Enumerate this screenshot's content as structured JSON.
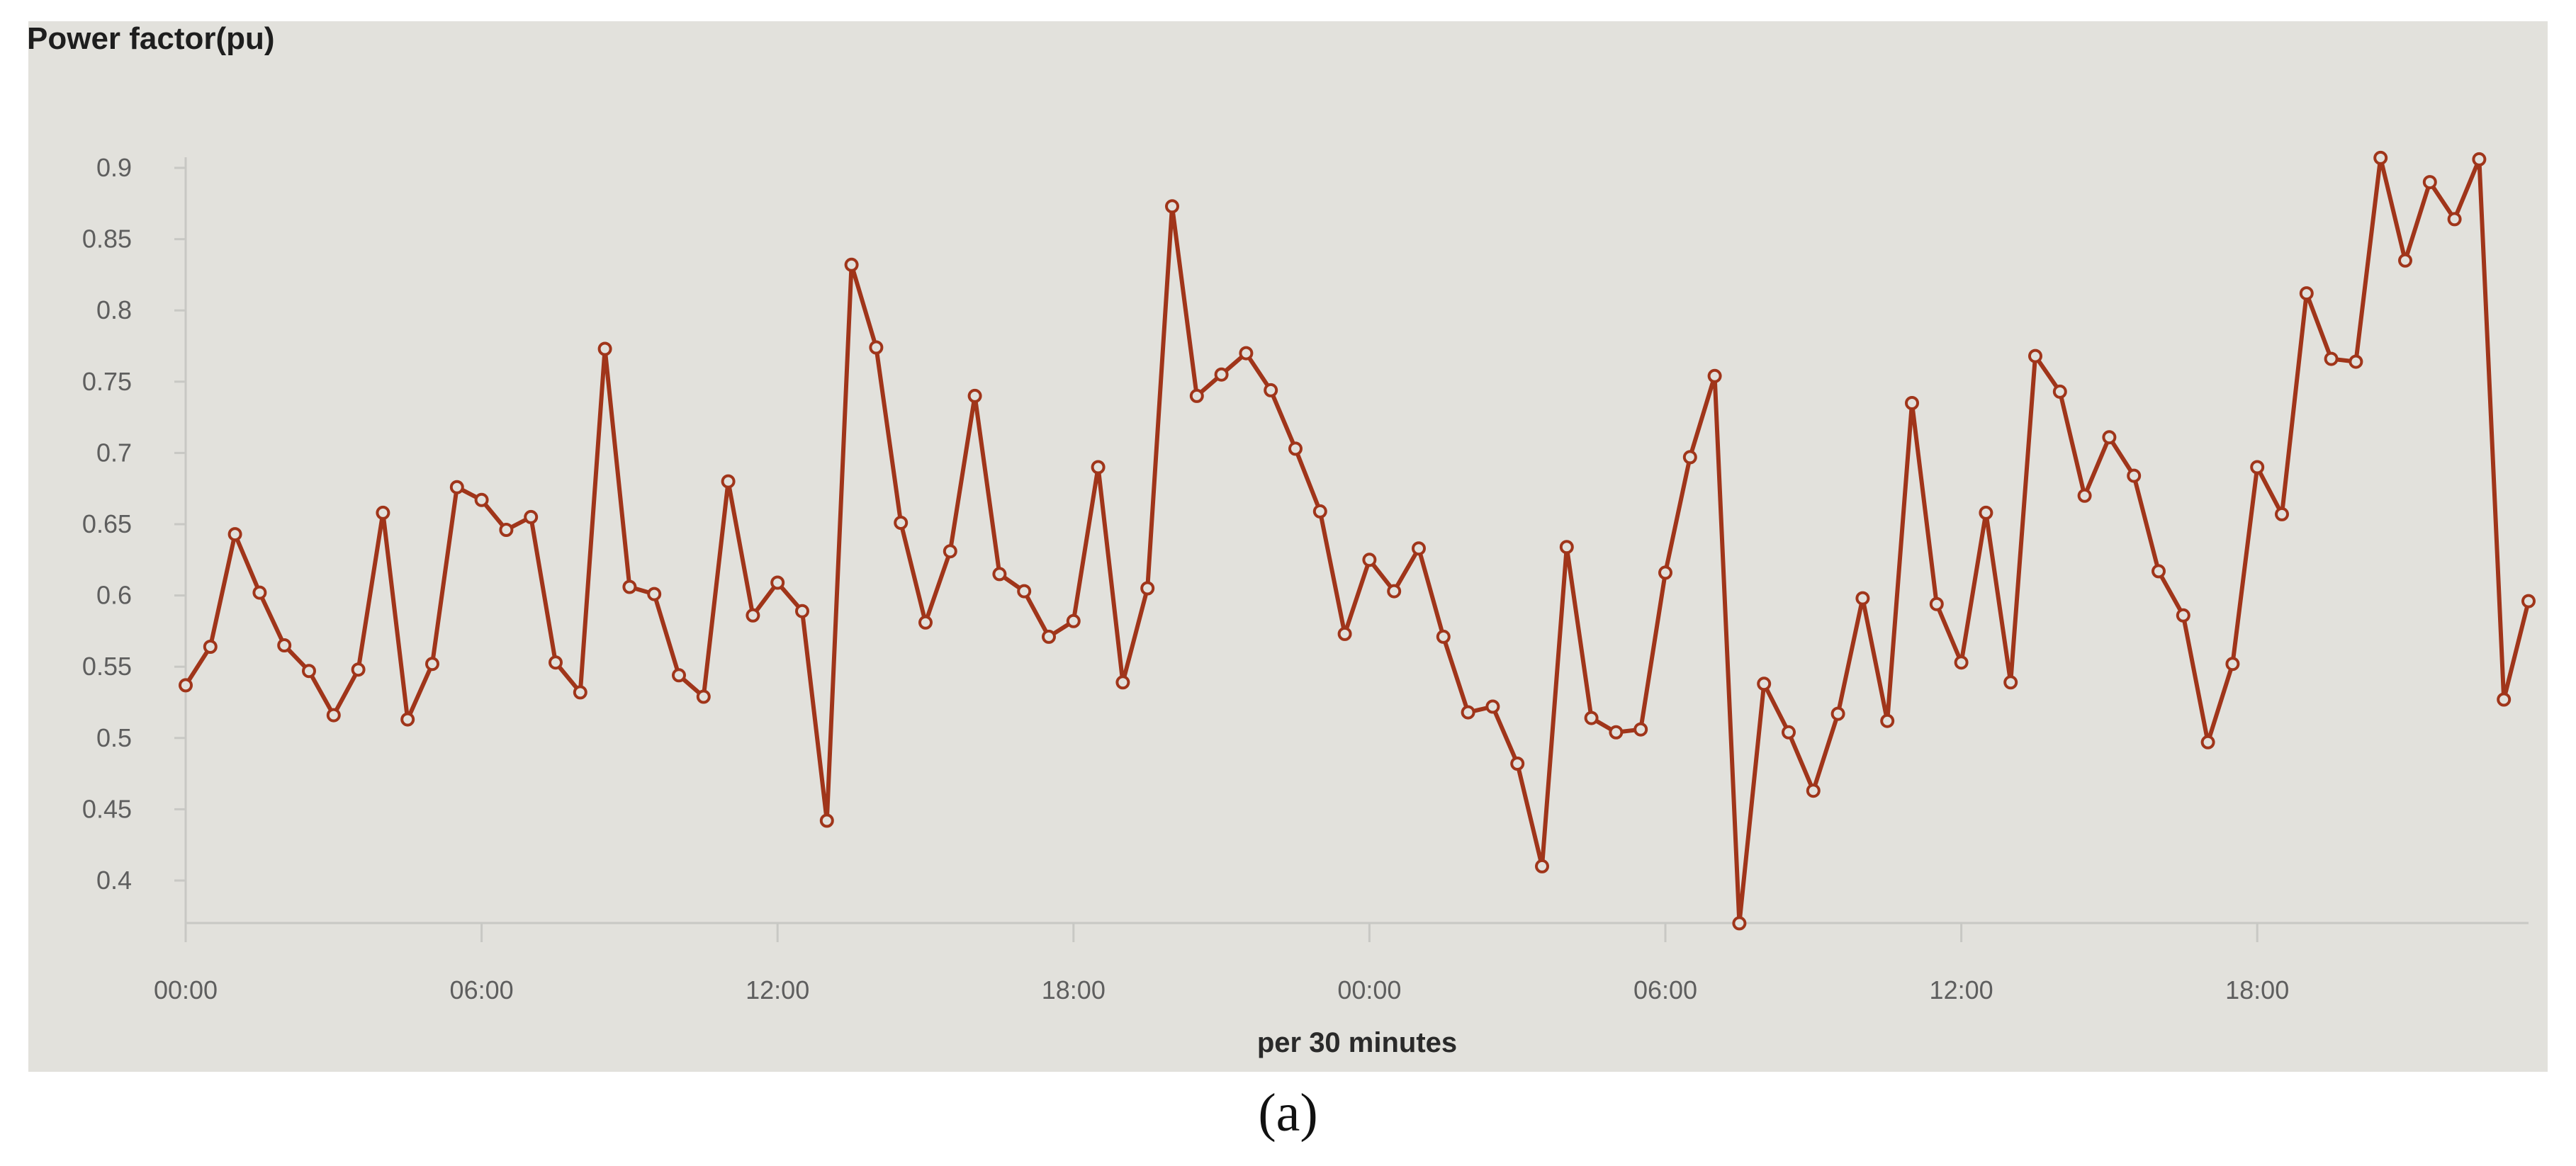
{
  "figure": {
    "caption": "(a)"
  },
  "chart_data": {
    "type": "line",
    "title": "Power factor(pu)",
    "xlabel": "per 30 minutes",
    "ylabel": "",
    "ylim": [
      0.37,
      0.91
    ],
    "y_ticks": [
      "0.4",
      "0.45",
      "0.5",
      "0.55",
      "0.6",
      "0.65",
      "0.7",
      "0.75",
      "0.8",
      "0.85",
      "0.9"
    ],
    "x_ticks": [
      "00:00",
      "06:00",
      "12:00",
      "18:00",
      "00:00",
      "06:00",
      "12:00",
      "18:00"
    ],
    "grid": false,
    "line_color": "#a0351a",
    "panel_color": "#e2e1dc",
    "series": [
      {
        "values": [
          0.537,
          0.564,
          0.643,
          0.602,
          0.565,
          0.547,
          0.516,
          0.548,
          0.658,
          0.513,
          0.552,
          0.676,
          0.667,
          0.646,
          0.655,
          0.553,
          0.532,
          0.773,
          0.606,
          0.601,
          0.544,
          0.529,
          0.68,
          0.586,
          0.609,
          0.589,
          0.442,
          0.832,
          0.774,
          0.651,
          0.581,
          0.631,
          0.74,
          0.615,
          0.603,
          0.571,
          0.582,
          0.69,
          0.539,
          0.605,
          0.873,
          0.74,
          0.755,
          0.77,
          0.744,
          0.703,
          0.659,
          0.573,
          0.625,
          0.603,
          0.633,
          0.571,
          0.518,
          0.522,
          0.482,
          0.41,
          0.634,
          0.514,
          0.504,
          0.506,
          0.616,
          0.697,
          0.754,
          0.37,
          0.538,
          0.504,
          0.463,
          0.517,
          0.598,
          0.512,
          0.735,
          0.594,
          0.553,
          0.658,
          0.539,
          0.768,
          0.743,
          0.67,
          0.711,
          0.684,
          0.617,
          0.586,
          0.497,
          0.552,
          0.69,
          0.657,
          0.812,
          0.766,
          0.764,
          0.907,
          0.835,
          0.89,
          0.864,
          0.906,
          0.527,
          0.596
        ]
      }
    ]
  }
}
